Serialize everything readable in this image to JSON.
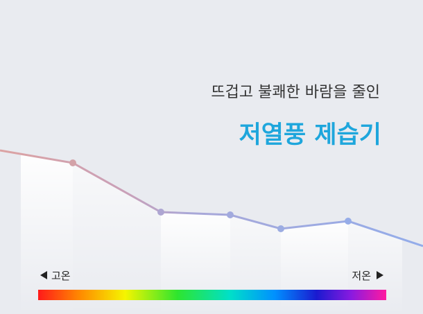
{
  "headline": {
    "subtitle": "뜨겁고 불쾌한 바람을 줄인",
    "title": "저열풍 제습기"
  },
  "scale": {
    "high_label": "고온",
    "low_label": "저온"
  }
}
